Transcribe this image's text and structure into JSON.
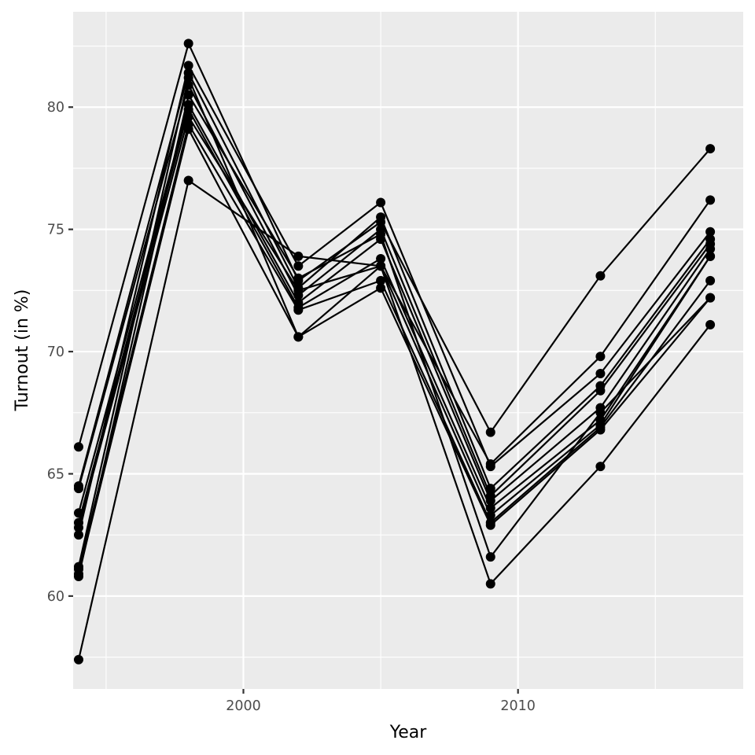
{
  "chart_data": {
    "type": "line",
    "title": "",
    "xlabel": "Year",
    "ylabel": "Turnout (in %)",
    "xlim": [
      1993.8,
      2018.2
    ],
    "ylim": [
      56.2,
      83.9
    ],
    "x_breaks": [
      2000,
      2010
    ],
    "x_minor_breaks": [
      1995,
      2005,
      2015
    ],
    "y_breaks": [
      60,
      65,
      70,
      75,
      80
    ],
    "y_minor_breaks": [
      57.5,
      62.5,
      67.5,
      72.5,
      77.5,
      82.5
    ],
    "x_tick_labels": [
      "2000",
      "2010"
    ],
    "y_tick_labels": [
      "60",
      "65",
      "70",
      "75",
      "80"
    ],
    "grid": true,
    "legend": "none",
    "line_color": "#000000",
    "panel_color": "#ebebeb",
    "x": [
      1994,
      1998,
      2002,
      2005,
      2009,
      2013,
      2017
    ],
    "series": [
      {
        "values": [
          66.1,
          82.6,
          72.9,
          75.3,
          66.7,
          73.1,
          78.3
        ]
      },
      {
        "values": [
          57.4,
          77.0,
          73.9,
          73.5,
          65.4,
          69.8,
          76.2
        ]
      },
      {
        "values": [
          62.5,
          81.7,
          73.5,
          76.1,
          65.3,
          69.1,
          74.9
        ]
      },
      {
        "values": [
          64.5,
          81.4,
          72.6,
          75.5,
          64.4,
          68.6,
          74.6
        ]
      },
      {
        "values": [
          64.4,
          80.9,
          72.3,
          75.0,
          64.1,
          68.4,
          74.4
        ]
      },
      {
        "values": [
          63.4,
          80.1,
          72.0,
          74.6,
          63.9,
          67.7,
          74.2
        ]
      },
      {
        "values": [
          63.0,
          79.9,
          71.8,
          73.8,
          63.6,
          67.2,
          73.9
        ]
      },
      {
        "values": [
          62.8,
          79.6,
          72.5,
          73.5,
          63.3,
          67.0,
          73.9
        ]
      },
      {
        "values": [
          61.1,
          79.3,
          71.7,
          72.9,
          63.0,
          66.9,
          72.9
        ]
      },
      {
        "values": [
          60.9,
          79.1,
          70.6,
          72.6,
          62.9,
          66.8,
          72.2
        ]
      },
      {
        "values": [
          60.8,
          80.5,
          73.0,
          74.8,
          61.6,
          67.5,
          72.2
        ]
      },
      {
        "values": [
          61.2,
          81.2,
          70.6,
          73.5,
          60.5,
          65.3,
          71.1
        ]
      }
    ]
  }
}
